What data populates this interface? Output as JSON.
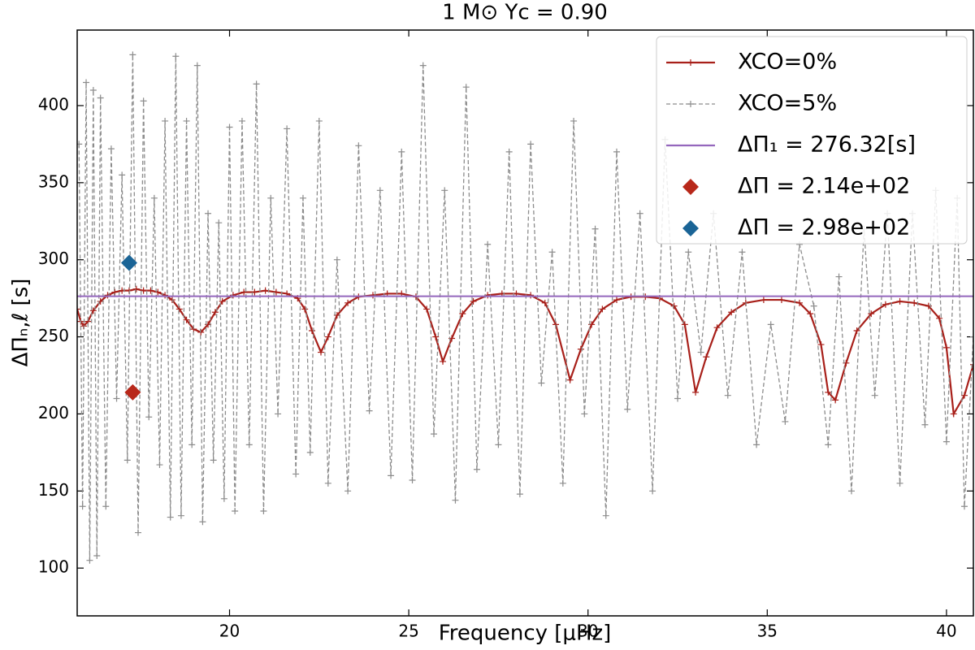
{
  "chart_data": {
    "type": "line",
    "title": "1 M⊙   Yc = 0.90",
    "x_label": "Frequency [μHz]",
    "y_label": "ΔΠₙ,ℓ [s]",
    "xlim": [
      15.75,
      40.75
    ],
    "ylim": [
      69,
      449
    ],
    "xticks": [
      20,
      25,
      30,
      35,
      40
    ],
    "yticks": [
      100,
      150,
      200,
      250,
      300,
      350,
      400
    ],
    "legend": "upper right",
    "series": [
      {
        "name": "XCO=0%",
        "color": "#a8201a",
        "style": "solid",
        "x": [
          15.75,
          15.85,
          15.93,
          16.05,
          16.2,
          16.4,
          16.6,
          16.8,
          17.0,
          17.2,
          17.4,
          17.6,
          17.8,
          18.0,
          18.2,
          18.4,
          18.6,
          18.8,
          19.0,
          19.2,
          19.4,
          19.6,
          19.8,
          20.1,
          20.4,
          20.7,
          21.0,
          21.3,
          21.6,
          21.9,
          22.1,
          22.3,
          22.55,
          22.75,
          23.0,
          23.3,
          23.6,
          24.0,
          24.4,
          24.8,
          25.2,
          25.5,
          25.75,
          25.95,
          26.2,
          26.5,
          26.8,
          27.2,
          27.6,
          28.0,
          28.4,
          28.8,
          29.1,
          29.5,
          29.8,
          30.1,
          30.4,
          30.8,
          31.2,
          31.6,
          32.0,
          32.4,
          32.7,
          33.0,
          33.3,
          33.6,
          34.0,
          34.4,
          34.9,
          35.4,
          35.9,
          36.2,
          36.5,
          36.7,
          36.9,
          37.2,
          37.5,
          37.9,
          38.3,
          38.7,
          39.1,
          39.5,
          39.8,
          40.0,
          40.2,
          40.5,
          40.75
        ],
        "values": [
          268,
          260,
          257,
          260,
          267,
          273,
          277,
          279,
          280,
          280,
          281,
          280,
          280,
          279,
          277,
          274,
          268,
          261,
          255,
          253,
          258,
          266,
          273,
          277,
          279,
          279,
          280,
          279,
          278,
          275,
          268,
          254,
          240,
          250,
          264,
          272,
          276,
          277,
          278,
          278,
          276,
          268,
          250,
          234,
          249,
          265,
          273,
          277,
          278,
          278,
          277,
          272,
          258,
          222,
          242,
          258,
          268,
          274,
          276,
          276,
          275,
          270,
          258,
          214,
          237,
          256,
          266,
          272,
          274,
          274,
          272,
          265,
          245,
          214,
          209,
          233,
          254,
          265,
          271,
          273,
          272,
          270,
          262,
          243,
          200,
          212,
          232
        ]
      },
      {
        "name": "XCO=5%",
        "color": "#8c8c8c",
        "style": "dashed",
        "x": [
          15.8,
          15.9,
          16.0,
          16.1,
          16.2,
          16.3,
          16.4,
          16.55,
          16.7,
          16.85,
          17.0,
          17.15,
          17.3,
          17.45,
          17.6,
          17.75,
          17.9,
          18.05,
          18.2,
          18.35,
          18.5,
          18.65,
          18.8,
          18.95,
          19.1,
          19.25,
          19.4,
          19.55,
          19.7,
          19.85,
          20.0,
          20.15,
          20.35,
          20.55,
          20.75,
          20.95,
          21.15,
          21.35,
          21.6,
          21.85,
          22.05,
          22.25,
          22.5,
          22.75,
          23.0,
          23.3,
          23.6,
          23.9,
          24.2,
          24.5,
          24.8,
          25.1,
          25.4,
          25.7,
          26.0,
          26.3,
          26.6,
          26.9,
          27.2,
          27.5,
          27.8,
          28.1,
          28.4,
          28.7,
          29.0,
          29.3,
          29.6,
          29.9,
          30.2,
          30.5,
          30.8,
          31.1,
          31.45,
          31.8,
          32.15,
          32.5,
          32.8,
          33.15,
          33.5,
          33.9,
          34.3,
          34.7,
          35.1,
          35.5,
          35.9,
          36.3,
          36.7,
          37.0,
          37.35,
          37.7,
          38.0,
          38.35,
          38.7,
          39.05,
          39.4,
          39.7,
          40.0,
          40.3,
          40.5,
          40.75
        ],
        "values": [
          375,
          140,
          415,
          105,
          410,
          108,
          405,
          140,
          372,
          210,
          355,
          170,
          433,
          123,
          403,
          198,
          340,
          167,
          390,
          133,
          432,
          134,
          390,
          180,
          426,
          130,
          330,
          170,
          324,
          145,
          386,
          137,
          390,
          180,
          414,
          137,
          340,
          200,
          385,
          161,
          340,
          175,
          390,
          155,
          300,
          150,
          374,
          202,
          345,
          160,
          370,
          157,
          426,
          187,
          345,
          144,
          412,
          164,
          310,
          180,
          370,
          148,
          375,
          220,
          305,
          155,
          390,
          200,
          320,
          134,
          370,
          203,
          330,
          150,
          378,
          210,
          305,
          240,
          330,
          212,
          305,
          180,
          258,
          195,
          310,
          270,
          180,
          289,
          150,
          320,
          212,
          330,
          155,
          330,
          193,
          345,
          182,
          340,
          140,
          250
        ]
      },
      {
        "name": "ΔΠ₁ = 276.32[s]",
        "type": "hline",
        "color": "#9467bd",
        "value": 276.32
      },
      {
        "name": "ΔΠ = 2.14e+02",
        "type": "scatter",
        "color": "#b8281a",
        "x": [
          17.3
        ],
        "values": [
          214
        ]
      },
      {
        "name": "ΔΠ = 2.98e+02",
        "type": "scatter",
        "color": "#1a6496",
        "x": [
          17.2
        ],
        "values": [
          298
        ]
      }
    ]
  }
}
